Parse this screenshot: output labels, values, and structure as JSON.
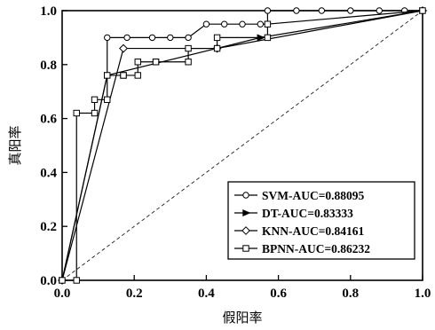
{
  "chart_data": {
    "type": "line",
    "title": "",
    "xlabel": "假阳率",
    "ylabel": "真阳率",
    "xlim": [
      0,
      1
    ],
    "ylim": [
      0,
      1
    ],
    "xticks": [
      "0.0",
      "0.2",
      "0.4",
      "0.6",
      "0.8",
      "1.0"
    ],
    "yticks": [
      "0.0",
      "0.2",
      "0.4",
      "0.6",
      "0.8",
      "1.0"
    ],
    "grid": false,
    "legend_position": "bottom-right",
    "reference_line": {
      "style": "dashed",
      "x": [
        0,
        1
      ],
      "y": [
        0,
        1
      ]
    },
    "series": [
      {
        "name": "SVM-AUC=0.88095",
        "marker": "circle",
        "x": [
          0,
          0.125,
          0.125,
          0.18,
          0.25,
          0.3,
          0.35,
          0.4,
          0.45,
          0.5,
          0.55,
          0.57,
          0.57,
          0.65,
          0.72,
          0.8,
          0.88,
          0.95,
          1.0
        ],
        "y": [
          0,
          0.76,
          0.9,
          0.9,
          0.9,
          0.9,
          0.9,
          0.95,
          0.95,
          0.95,
          0.95,
          0.95,
          1.0,
          1.0,
          1.0,
          1.0,
          1.0,
          1.0,
          1.0
        ]
      },
      {
        "name": "DT-AUC=0.83333",
        "marker": "triangle-right",
        "x": [
          0,
          0.125,
          0.55,
          1.0
        ],
        "y": [
          0,
          0.76,
          0.9,
          1.0
        ]
      },
      {
        "name": "KNN-AUC=0.84161",
        "marker": "diamond",
        "x": [
          0,
          0.17,
          0.43,
          1.0
        ],
        "y": [
          0,
          0.86,
          0.86,
          1.0
        ]
      },
      {
        "name": "BPNN-AUC=0.86232",
        "marker": "square",
        "x": [
          0,
          0.04,
          0.04,
          0.09,
          0.09,
          0.125,
          0.125,
          0.17,
          0.17,
          0.21,
          0.21,
          0.26,
          0.26,
          0.35,
          0.35,
          0.43,
          0.43,
          0.57,
          0.57,
          1.0
        ],
        "y": [
          0,
          0,
          0.62,
          0.62,
          0.67,
          0.67,
          0.76,
          0.76,
          0.76,
          0.76,
          0.81,
          0.81,
          0.81,
          0.81,
          0.86,
          0.86,
          0.9,
          0.9,
          0.95,
          1.0
        ]
      }
    ]
  }
}
